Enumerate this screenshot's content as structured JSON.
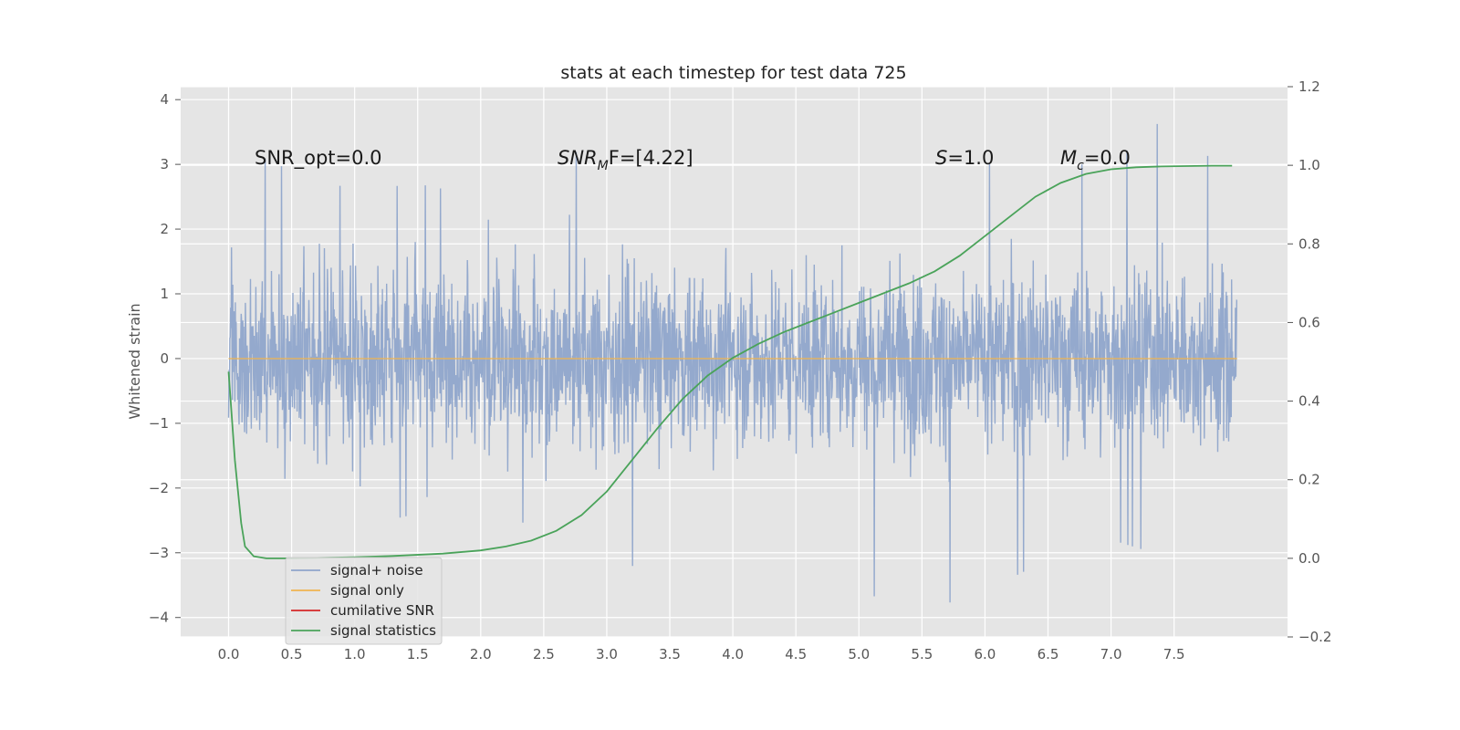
{
  "chart_data": {
    "type": "line",
    "title": "stats at each timestep for test data 725",
    "ylabel": "Whitened strain",
    "y2label": "",
    "xlim": [
      -0.38,
      8.4
    ],
    "ylim": [
      -4.3,
      4.2
    ],
    "y2lim": [
      -0.2,
      1.2
    ],
    "x_ticks": [
      "0.0",
      "0.5",
      "1.0",
      "1.5",
      "2.0",
      "2.5",
      "3.0",
      "3.5",
      "4.0",
      "4.5",
      "5.0",
      "5.5",
      "6.0",
      "6.5",
      "7.0",
      "7.5"
    ],
    "y_ticks": [
      "4",
      "3",
      "2",
      "1",
      "0",
      "−1",
      "−2",
      "−3",
      "−4"
    ],
    "y2_ticks": [
      "1.2",
      "1.0",
      "0.8",
      "0.6",
      "0.4",
      "0.2",
      "0.0",
      "−0.2"
    ],
    "grid": true,
    "legend_position": "lower-left",
    "colors": {
      "signal_noise": "#8fa5cb",
      "signal_only": "#f0b450",
      "cumulative_snr": "#d62728",
      "signal_statistics": "#4aa35a",
      "background": "#e5e5e5"
    },
    "annotations": {
      "snr_opt": "SNR_opt=0.0",
      "snr_mf_main": "SNR",
      "snr_mf_sub": "M",
      "snr_mf_rest": "F=[4.22]",
      "s_label": "S",
      "s_value": "=1.0",
      "mc_main": "M",
      "mc_sub": "c",
      "mc_value": "=0.0"
    },
    "series": [
      {
        "name": "signal+ noise",
        "axis": "left",
        "description_range": [
          -4.0,
          3.85
        ],
        "x_range": [
          0.0,
          8.0
        ],
        "envelope_min": [
          -3.1,
          -2.3,
          -2.6,
          -2.4,
          -2.6,
          -2.5,
          -3.0,
          -3.5,
          -2.8,
          -3.2,
          -3.6,
          -3.9,
          -3.6,
          -3.1,
          -2.8,
          -3.1,
          -2.9
        ],
        "envelope_max": [
          3.35,
          2.9,
          2.6,
          2.7,
          2.5,
          3.6,
          2.8,
          2.9,
          3.1,
          3.2,
          2.9,
          3.1,
          3.0,
          3.0,
          3.0,
          3.85,
          2.5
        ]
      },
      {
        "name": "signal only",
        "axis": "left",
        "x": [
          0.0,
          8.0
        ],
        "y": [
          0.0,
          0.0
        ]
      },
      {
        "name": "cumilative SNR",
        "axis": "left",
        "x": [],
        "y": []
      },
      {
        "name": "signal statistics",
        "axis": "right",
        "x": [
          0.0,
          0.05,
          0.1,
          0.13,
          0.2,
          0.3,
          0.5,
          0.7,
          1.0,
          1.3,
          1.7,
          2.0,
          2.2,
          2.4,
          2.6,
          2.8,
          3.0,
          3.2,
          3.4,
          3.6,
          3.8,
          4.0,
          4.2,
          4.4,
          4.6,
          4.8,
          5.0,
          5.2,
          5.4,
          5.6,
          5.8,
          6.0,
          6.2,
          6.4,
          6.6,
          6.8,
          7.0,
          7.2,
          7.4,
          7.6,
          7.8,
          7.96
        ],
        "y": [
          0.475,
          0.25,
          0.09,
          0.03,
          0.005,
          0.0,
          0.0,
          0.001,
          0.003,
          0.006,
          0.012,
          0.02,
          0.03,
          0.045,
          0.07,
          0.11,
          0.17,
          0.25,
          0.33,
          0.405,
          0.465,
          0.51,
          0.545,
          0.575,
          0.6,
          0.625,
          0.65,
          0.675,
          0.7,
          0.73,
          0.77,
          0.82,
          0.87,
          0.92,
          0.955,
          0.978,
          0.99,
          0.995,
          0.997,
          0.998,
          0.999,
          0.999
        ]
      }
    ]
  }
}
